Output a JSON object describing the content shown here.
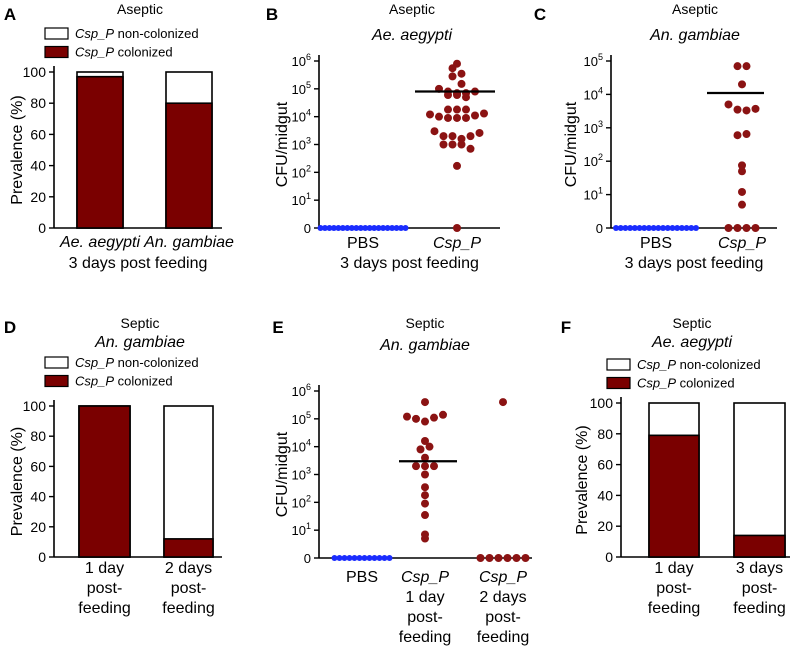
{
  "colors": {
    "colonized": "#7a0000",
    "non_colonized": "#ffffff",
    "csp_dots": "#8b1313",
    "pbs_dots": "#1a2cff",
    "axis": "#000000"
  },
  "chart_data": [
    {
      "panel": "A",
      "type": "bar",
      "stacked": true,
      "title": "Aseptic",
      "subtitle": "",
      "categories": [
        [
          "Ae. aegypti"
        ],
        [
          "An. gambiae"
        ]
      ],
      "category_italic": true,
      "xlabel": "3 days post feeding",
      "ylabel": "Prevalence (%)",
      "ylim": [
        0,
        100
      ],
      "yticks": [
        "0",
        "20",
        "40",
        "60",
        "80",
        "100"
      ],
      "legend": [
        "Csp_P non-colonized",
        "Csp_P colonized"
      ],
      "series": [
        {
          "name": "Csp_P colonized",
          "values": [
            97,
            80
          ]
        },
        {
          "name": "Csp_P non-colonized",
          "values": [
            3,
            20
          ]
        }
      ]
    },
    {
      "panel": "B",
      "type": "scatter",
      "yscale": "log",
      "title": "Aseptic",
      "subtitle": "Ae. aegypti",
      "categories": [
        [
          "PBS"
        ],
        [
          "Csp_P"
        ]
      ],
      "xlabel": "3 days post feeding",
      "ylabel": "CFU/midgut",
      "yticks": [
        "0",
        "10^1",
        "10^2",
        "10^3",
        "10^4",
        "10^5",
        "10^6"
      ],
      "groups": [
        {
          "category": "PBS",
          "values": [
            0,
            0,
            0,
            0,
            0,
            0,
            0,
            0,
            0,
            0,
            0,
            0,
            0,
            0,
            0,
            0,
            0,
            0,
            0,
            0
          ],
          "median": null
        },
        {
          "category": "Csp_P",
          "values": [
            800000,
            550000,
            350000,
            280000,
            150000,
            100000,
            80000,
            70000,
            60000,
            60000,
            70000,
            80000,
            50000,
            18000,
            18000,
            18000,
            12000,
            10000,
            9000,
            9000,
            9000,
            11000,
            13000,
            3000,
            2000,
            2000,
            1600,
            2000,
            2600,
            1000,
            1000,
            1000,
            700,
            170,
            0
          ],
          "median": 80000
        }
      ]
    },
    {
      "panel": "C",
      "type": "scatter",
      "yscale": "log",
      "title": "Aseptic",
      "subtitle": "An. gambiae",
      "categories": [
        [
          "PBS"
        ],
        [
          "Csp_P"
        ]
      ],
      "xlabel": "3 days post feeding",
      "ylabel": "CFU/midgut",
      "yticks": [
        "0",
        "10^1",
        "10^2",
        "10^3",
        "10^4",
        "10^5"
      ],
      "groups": [
        {
          "category": "PBS",
          "values": [
            0,
            0,
            0,
            0,
            0,
            0,
            0,
            0,
            0,
            0,
            0,
            0,
            0,
            0,
            0,
            0,
            0,
            0
          ],
          "median": null
        },
        {
          "category": "Csp_P",
          "values": [
            70000,
            70000,
            20000,
            5000,
            3500,
            3300,
            3700,
            600,
            650,
            75,
            50,
            12,
            5,
            0,
            0,
            0,
            0
          ],
          "median": 11000
        }
      ]
    },
    {
      "panel": "D",
      "type": "bar",
      "stacked": true,
      "title": "Septic",
      "subtitle": "An. gambiae",
      "categories": [
        [
          "1 day",
          "post-",
          "feeding"
        ],
        [
          "2 days",
          "post-",
          "feeding"
        ]
      ],
      "category_italic": false,
      "xlabel": "",
      "ylabel": "Prevalence (%)",
      "ylim": [
        0,
        100
      ],
      "yticks": [
        "0",
        "20",
        "40",
        "60",
        "80",
        "100"
      ],
      "legend": [
        "Csp_P non-colonized",
        "Csp_P colonized"
      ],
      "series": [
        {
          "name": "Csp_P colonized",
          "values": [
            100,
            12
          ]
        },
        {
          "name": "Csp_P non-colonized",
          "values": [
            0,
            88
          ]
        }
      ]
    },
    {
      "panel": "E",
      "type": "scatter",
      "yscale": "log",
      "title": "Septic",
      "subtitle": "An. gambiae",
      "categories": [
        [
          "PBS"
        ],
        [
          "Csp_P",
          "1 day",
          "post-",
          "feeding"
        ],
        [
          "Csp_P",
          "2 days",
          "post-",
          "feeding"
        ]
      ],
      "xlabel": "",
      "ylabel": "CFU/midgut",
      "yticks": [
        "0",
        "10^1",
        "10^2",
        "10^3",
        "10^4",
        "10^5",
        "10^6"
      ],
      "groups": [
        {
          "category": "PBS",
          "values": [
            0,
            0,
            0,
            0,
            0,
            0,
            0,
            0,
            0,
            0,
            0,
            0
          ],
          "median": null
        },
        {
          "category": "Csp_P 1 day post-feeding",
          "values": [
            400000,
            120000,
            100000,
            80000,
            110000,
            140000,
            16000,
            8000,
            10000,
            4000,
            2000,
            2000,
            2000,
            1000,
            350,
            180,
            90,
            35,
            7,
            5
          ],
          "median": 3000
        },
        {
          "category": "Csp_P 2 days post-feeding",
          "values": [
            400000,
            0,
            0,
            0,
            0,
            0,
            0
          ],
          "median": null
        }
      ]
    },
    {
      "panel": "F",
      "type": "bar",
      "stacked": true,
      "title": "Septic",
      "subtitle": "Ae. aegypti",
      "categories": [
        [
          "1 day",
          "post-",
          "feeding"
        ],
        [
          "3 days",
          "post-",
          "feeding"
        ]
      ],
      "category_italic": false,
      "xlabel": "",
      "ylabel": "Prevalence (%)",
      "ylim": [
        0,
        100
      ],
      "yticks": [
        "0",
        "20",
        "40",
        "60",
        "80",
        "100"
      ],
      "legend": [
        "Csp_P non-colonized",
        "Csp_P colonized"
      ],
      "series": [
        {
          "name": "Csp_P colonized",
          "values": [
            79,
            14
          ]
        },
        {
          "name": "Csp_P non-colonized",
          "values": [
            21,
            86
          ]
        }
      ]
    }
  ]
}
